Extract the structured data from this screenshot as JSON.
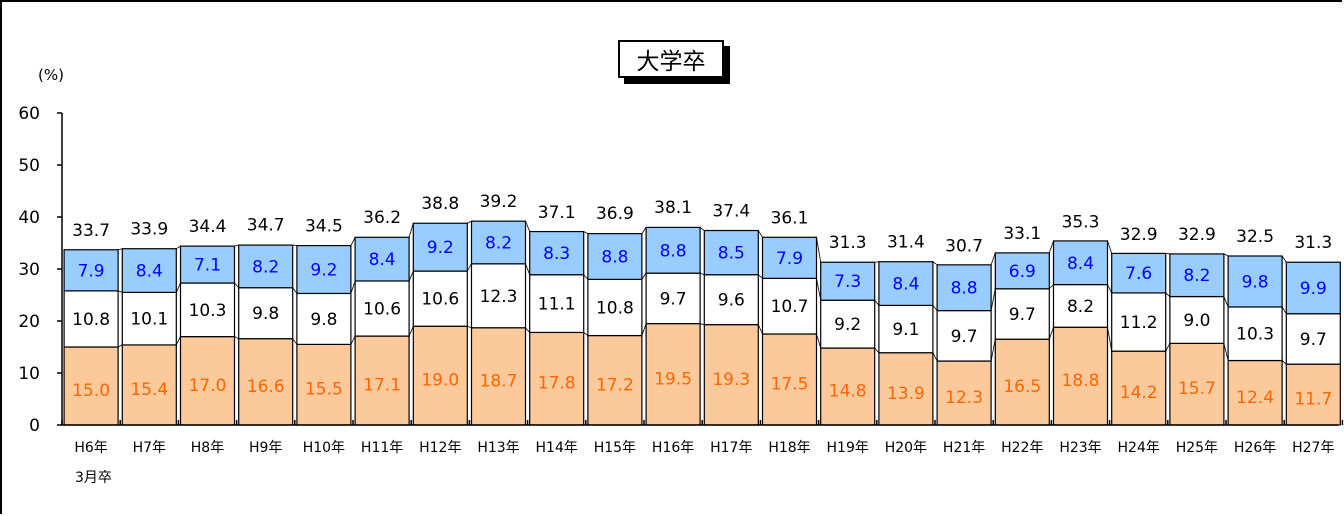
{
  "title": "大学卒",
  "unit_label": "(%)",
  "x_note": "3月卒",
  "colors": {
    "bottom": "#fcc99b",
    "middle": "#ffffff",
    "top": "#99ccff",
    "bottom_text": "#ff6600",
    "top_text": "#0000ff",
    "axis": "#000000"
  },
  "chart_data": {
    "type": "bar",
    "stacked": true,
    "title": "大学卒",
    "ylabel": "(%)",
    "xlabel": "",
    "ylim": [
      0,
      60
    ],
    "yticks": [
      0,
      10,
      20,
      30,
      40,
      50,
      60
    ],
    "grid": false,
    "categories": [
      "H6年",
      "H7年",
      "H8年",
      "H9年",
      "H10年",
      "H11年",
      "H12年",
      "H13年",
      "H14年",
      "H15年",
      "H16年",
      "H17年",
      "H18年",
      "H19年",
      "H20年",
      "H21年",
      "H22年",
      "H23年",
      "H24年",
      "H25年",
      "H26年",
      "H27年"
    ],
    "series": [
      {
        "values": [
          15.0,
          15.4,
          17.0,
          16.6,
          15.5,
          17.1,
          19.0,
          18.7,
          17.8,
          17.2,
          19.5,
          19.3,
          17.5,
          14.8,
          13.9,
          12.3,
          16.5,
          18.8,
          14.2,
          15.7,
          12.4,
          11.7
        ]
      },
      {
        "values": [
          10.8,
          10.1,
          10.3,
          9.8,
          9.8,
          10.6,
          10.6,
          12.3,
          11.1,
          10.8,
          9.7,
          9.6,
          10.7,
          9.2,
          9.1,
          9.7,
          9.7,
          8.2,
          11.2,
          9.0,
          10.3,
          9.7
        ]
      },
      {
        "values": [
          7.9,
          8.4,
          7.1,
          8.2,
          9.2,
          8.4,
          9.2,
          8.2,
          8.3,
          8.8,
          8.8,
          8.5,
          7.9,
          7.3,
          8.4,
          8.8,
          6.9,
          8.4,
          7.6,
          8.2,
          9.8,
          9.9
        ]
      }
    ],
    "totals": [
      33.7,
      33.9,
      34.4,
      34.7,
      34.5,
      36.2,
      38.8,
      39.2,
      37.1,
      36.9,
      38.1,
      37.4,
      36.1,
      31.3,
      31.4,
      30.7,
      33.1,
      35.3,
      32.9,
      32.9,
      32.5,
      31.3
    ]
  }
}
